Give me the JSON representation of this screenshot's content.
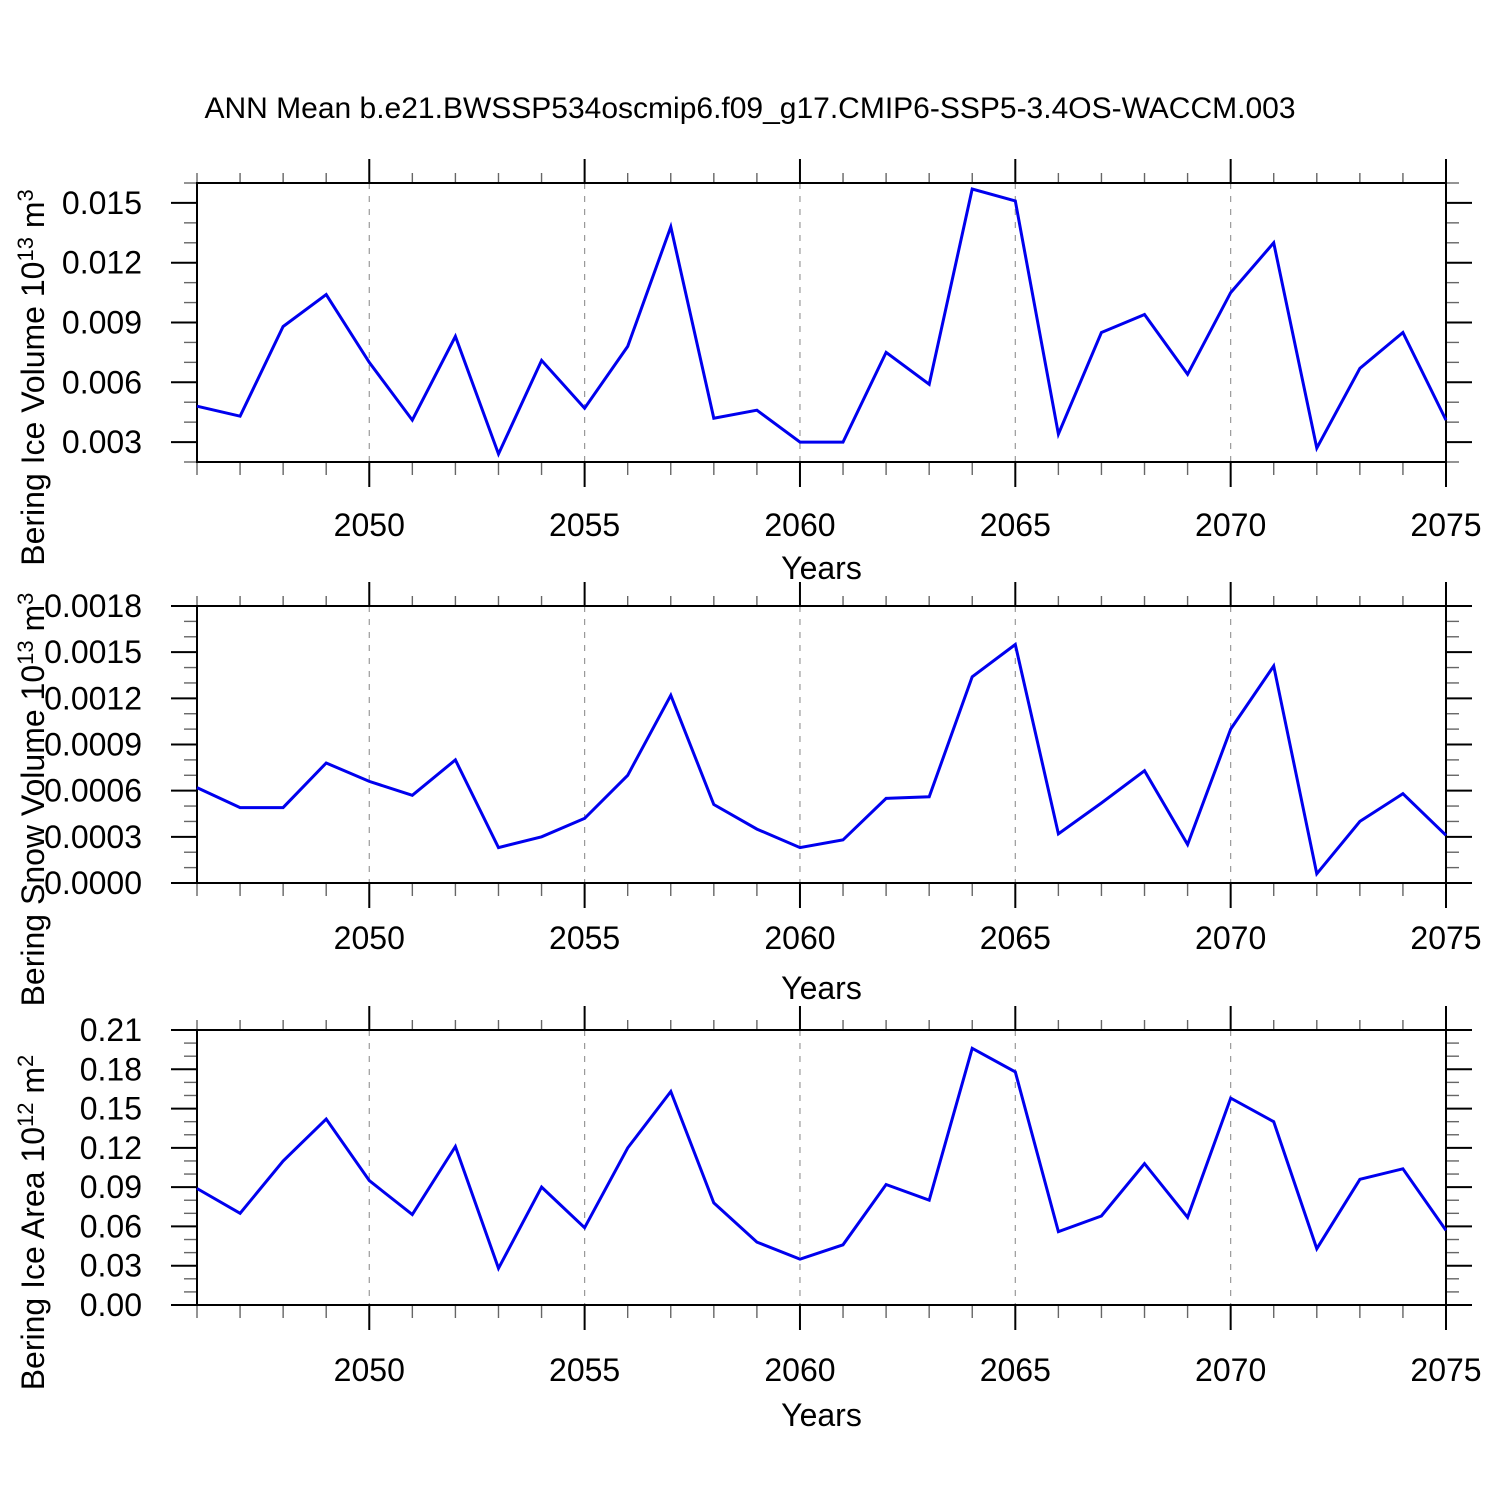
{
  "title": "ANN Mean b.e21.BWSSP534oscmip6.f09_g17.CMIP6-SSP5-3.4OS-WACCM.003",
  "colors": {
    "line": "#0000ee",
    "frame": "#000000",
    "major_tick": "#000000",
    "minor_tick": "#666666",
    "grid": "#999999",
    "text": "#000000",
    "background": "#ffffff"
  },
  "chart_data": [
    {
      "id": "bering-ice-volume",
      "type": "line",
      "xlabel": "Years",
      "ylabel": "Bering Ice Volume 10^13 m^3",
      "ylabel_parts": [
        {
          "t": "Bering Ice Volume 10"
        },
        {
          "t": "13",
          "sup": true
        },
        {
          "t": " m"
        },
        {
          "t": "3",
          "sup": true
        }
      ],
      "x": [
        2046,
        2047,
        2048,
        2049,
        2050,
        2051,
        2052,
        2053,
        2054,
        2055,
        2056,
        2057,
        2058,
        2059,
        2060,
        2061,
        2062,
        2063,
        2064,
        2065,
        2066,
        2067,
        2068,
        2069,
        2070,
        2071,
        2072,
        2073,
        2074,
        2075
      ],
      "values": [
        0.0048,
        0.0043,
        0.0088,
        0.0104,
        0.007,
        0.0041,
        0.0083,
        0.0024,
        0.0071,
        0.0047,
        0.0078,
        0.0138,
        0.0042,
        0.0046,
        0.003,
        0.003,
        0.0075,
        0.0059,
        0.0157,
        0.0151,
        0.0034,
        0.0085,
        0.0094,
        0.0064,
        0.0105,
        0.013,
        0.0027,
        0.0067,
        0.0085,
        0.0041
      ],
      "xlim": [
        2046,
        2075
      ],
      "ylim": [
        0.002,
        0.016
      ],
      "xticks_major": [
        2050,
        2055,
        2060,
        2065,
        2070,
        2075
      ],
      "xtick_labels": [
        "2050",
        "2055",
        "2060",
        "2065",
        "2070",
        "2075"
      ],
      "xtick_minor_step": 1,
      "yticks_major": [
        0.003,
        0.006,
        0.009,
        0.012,
        0.015
      ],
      "ytick_labels": [
        "0.003",
        "0.006",
        "0.009",
        "0.012",
        "0.015"
      ],
      "ytick_minor_step": 0.001,
      "grid_x": [
        2050,
        2055,
        2060,
        2065,
        2070
      ],
      "grid_style": "vertical-dashed",
      "legend": "none"
    },
    {
      "id": "bering-snow-volume",
      "type": "line",
      "xlabel": "Years",
      "ylabel": "Bering Snow Volume 10^13 m^3",
      "ylabel_parts": [
        {
          "t": "Bering Snow Volume 10"
        },
        {
          "t": "13",
          "sup": true
        },
        {
          "t": " m"
        },
        {
          "t": "3",
          "sup": true
        }
      ],
      "x": [
        2046,
        2047,
        2048,
        2049,
        2050,
        2051,
        2052,
        2053,
        2054,
        2055,
        2056,
        2057,
        2058,
        2059,
        2060,
        2061,
        2062,
        2063,
        2064,
        2065,
        2066,
        2067,
        2068,
        2069,
        2070,
        2071,
        2072,
        2073,
        2074,
        2075
      ],
      "values": [
        0.00062,
        0.00049,
        0.00049,
        0.00078,
        0.00066,
        0.00057,
        0.0008,
        0.00023,
        0.0003,
        0.00042,
        0.0007,
        0.00122,
        0.00051,
        0.00035,
        0.00023,
        0.00028,
        0.00055,
        0.00056,
        0.00134,
        0.00155,
        0.00032,
        0.00052,
        0.00073,
        0.00025,
        0.001,
        0.00141,
        6e-05,
        0.0004,
        0.00058,
        0.00031
      ],
      "xlim": [
        2046,
        2075
      ],
      "ylim": [
        0.0,
        0.0018
      ],
      "xticks_major": [
        2050,
        2055,
        2060,
        2065,
        2070,
        2075
      ],
      "xtick_labels": [
        "2050",
        "2055",
        "2060",
        "2065",
        "2070",
        "2075"
      ],
      "xtick_minor_step": 1,
      "yticks_major": [
        0.0,
        0.0003,
        0.0006,
        0.0009,
        0.0012,
        0.0015,
        0.0018
      ],
      "ytick_labels": [
        "0.0000",
        "0.0003",
        "0.0006",
        "0.0009",
        "0.0012",
        "0.0015",
        "0.0018"
      ],
      "ytick_minor_step": 0.0001,
      "grid_x": [
        2050,
        2055,
        2060,
        2065,
        2070
      ],
      "grid_style": "vertical-dashed",
      "legend": "none"
    },
    {
      "id": "bering-ice-area",
      "type": "line",
      "xlabel": "Years",
      "ylabel": "Bering Ice Area 10^12 m^2",
      "ylabel_parts": [
        {
          "t": "Bering Ice Area 10"
        },
        {
          "t": "12",
          "sup": true
        },
        {
          "t": " m"
        },
        {
          "t": "2",
          "sup": true
        }
      ],
      "x": [
        2046,
        2047,
        2048,
        2049,
        2050,
        2051,
        2052,
        2053,
        2054,
        2055,
        2056,
        2057,
        2058,
        2059,
        2060,
        2061,
        2062,
        2063,
        2064,
        2065,
        2066,
        2067,
        2068,
        2069,
        2070,
        2071,
        2072,
        2073,
        2074,
        2075
      ],
      "values": [
        0.089,
        0.07,
        0.11,
        0.142,
        0.095,
        0.069,
        0.121,
        0.028,
        0.09,
        0.059,
        0.12,
        0.163,
        0.078,
        0.048,
        0.035,
        0.046,
        0.092,
        0.08,
        0.196,
        0.178,
        0.056,
        0.068,
        0.108,
        0.067,
        0.158,
        0.14,
        0.043,
        0.096,
        0.104,
        0.057
      ],
      "xlim": [
        2046,
        2075
      ],
      "ylim": [
        0.0,
        0.21
      ],
      "xticks_major": [
        2050,
        2055,
        2060,
        2065,
        2070,
        2075
      ],
      "xtick_labels": [
        "2050",
        "2055",
        "2060",
        "2065",
        "2070",
        "2075"
      ],
      "xtick_minor_step": 1,
      "yticks_major": [
        0.0,
        0.03,
        0.06,
        0.09,
        0.12,
        0.15,
        0.18,
        0.21
      ],
      "ytick_labels": [
        "0.00",
        "0.03",
        "0.06",
        "0.09",
        "0.12",
        "0.15",
        "0.18",
        "0.21"
      ],
      "ytick_minor_step": 0.01,
      "grid_x": [
        2050,
        2055,
        2060,
        2065,
        2070
      ],
      "grid_style": "vertical-dashed",
      "legend": "none"
    }
  ]
}
